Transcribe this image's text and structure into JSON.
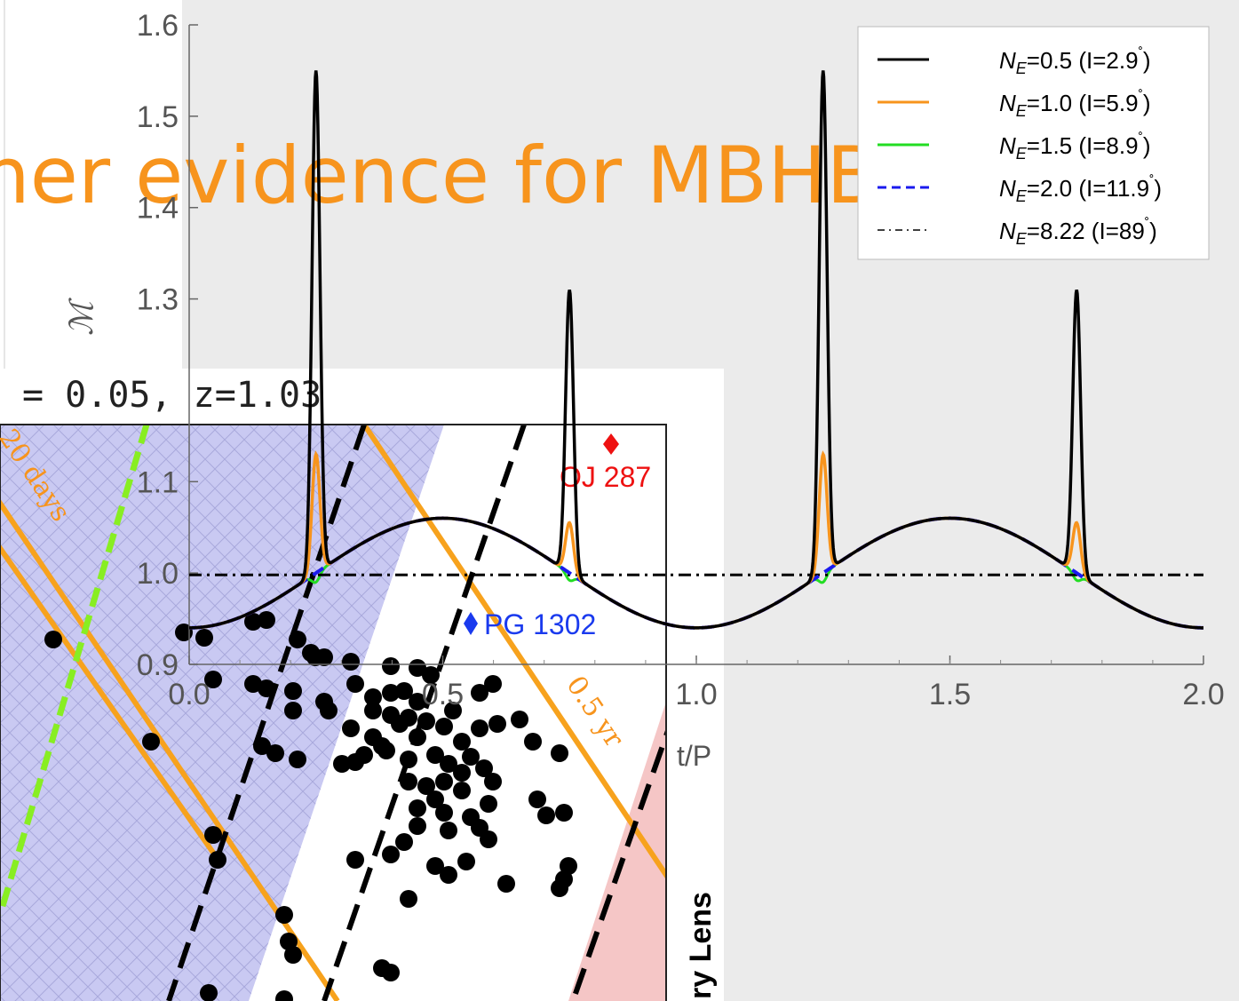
{
  "slide": {
    "title_fragment": "her evidence for MBHB",
    "background_color": "#ebebeb",
    "title_color": "#f7941d"
  },
  "chart_data": [
    {
      "type": "line",
      "xlabel": "t/P",
      "ylabel": "ℳ",
      "xlim": [
        0,
        2
      ],
      "ylim": [
        0.9,
        1.6
      ],
      "xticks": [
        "0.0",
        "0.5",
        "1.0",
        "1.5",
        "2.0"
      ],
      "yticks": [
        "0.9",
        "1.0",
        "1.1",
        "1.3",
        "1.4",
        "1.5",
        "1.6"
      ],
      "grid": false,
      "legend_position": "top-right",
      "series": [
        {
          "name": "N_E=0.5 (I=2.9˚)",
          "color": "#000000",
          "dash": "solid",
          "peak_primary": 1.59,
          "peak_secondary": 1.33
        },
        {
          "name": "N_E=1.0 (I=5.9˚)",
          "color": "#f7941d",
          "dash": "solid",
          "peak_primary": 1.17,
          "peak_secondary": 1.075
        },
        {
          "name": "N_E=1.5 (I=8.9˚)",
          "color": "#22dd22",
          "dash": "solid",
          "peak_primary": 1.03,
          "peak_secondary": 1.012
        },
        {
          "name": "N_E=2.0 (I=11.9˚)",
          "color": "#1a1aee",
          "dash": "dashed"
        },
        {
          "name": "N_E=8.22 (I=89˚)",
          "color": "#000000",
          "dash": "dashdot",
          "constant": 0.998
        }
      ],
      "baseline": {
        "mean": 1.0,
        "amplitude": 0.06,
        "min": 0.94,
        "max": 1.06
      },
      "peaks_at": [
        0.25,
        0.75,
        1.25,
        1.75
      ],
      "legend_labels": [
        {
          "sym": "N",
          "sub": "E",
          "rest": "=0.5 (I=2.9",
          "deg": "˚",
          "close": ")"
        },
        {
          "sym": "N",
          "sub": "E",
          "rest": "=1.0 (I=5.9",
          "deg": "˚",
          "close": ")"
        },
        {
          "sym": "N",
          "sub": "E",
          "rest": "=1.5 (I=8.9",
          "deg": "˚",
          "close": ")"
        },
        {
          "sym": "N",
          "sub": "E",
          "rest": "=2.0 (I=11.9",
          "deg": "˚",
          "close": ")"
        },
        {
          "sym": "N",
          "sub": "E",
          "rest": "=8.22 (I=89",
          "deg": "˚",
          "close": ")"
        }
      ]
    },
    {
      "type": "scatter",
      "title": "= 0.05, z=1.03",
      "side_label": "ry Lens",
      "line_labels": [
        "20 days",
        "0.5 yr"
      ],
      "sources": [
        {
          "name": "OJ 287",
          "color": "#ee1111"
        },
        {
          "name": "PG 1302",
          "color": "#1a3aee"
        }
      ],
      "regions": {
        "hatched_color": "#c9c9f2",
        "pink_color": "#f5c6c6"
      },
      "point_color": "#000000"
    }
  ]
}
